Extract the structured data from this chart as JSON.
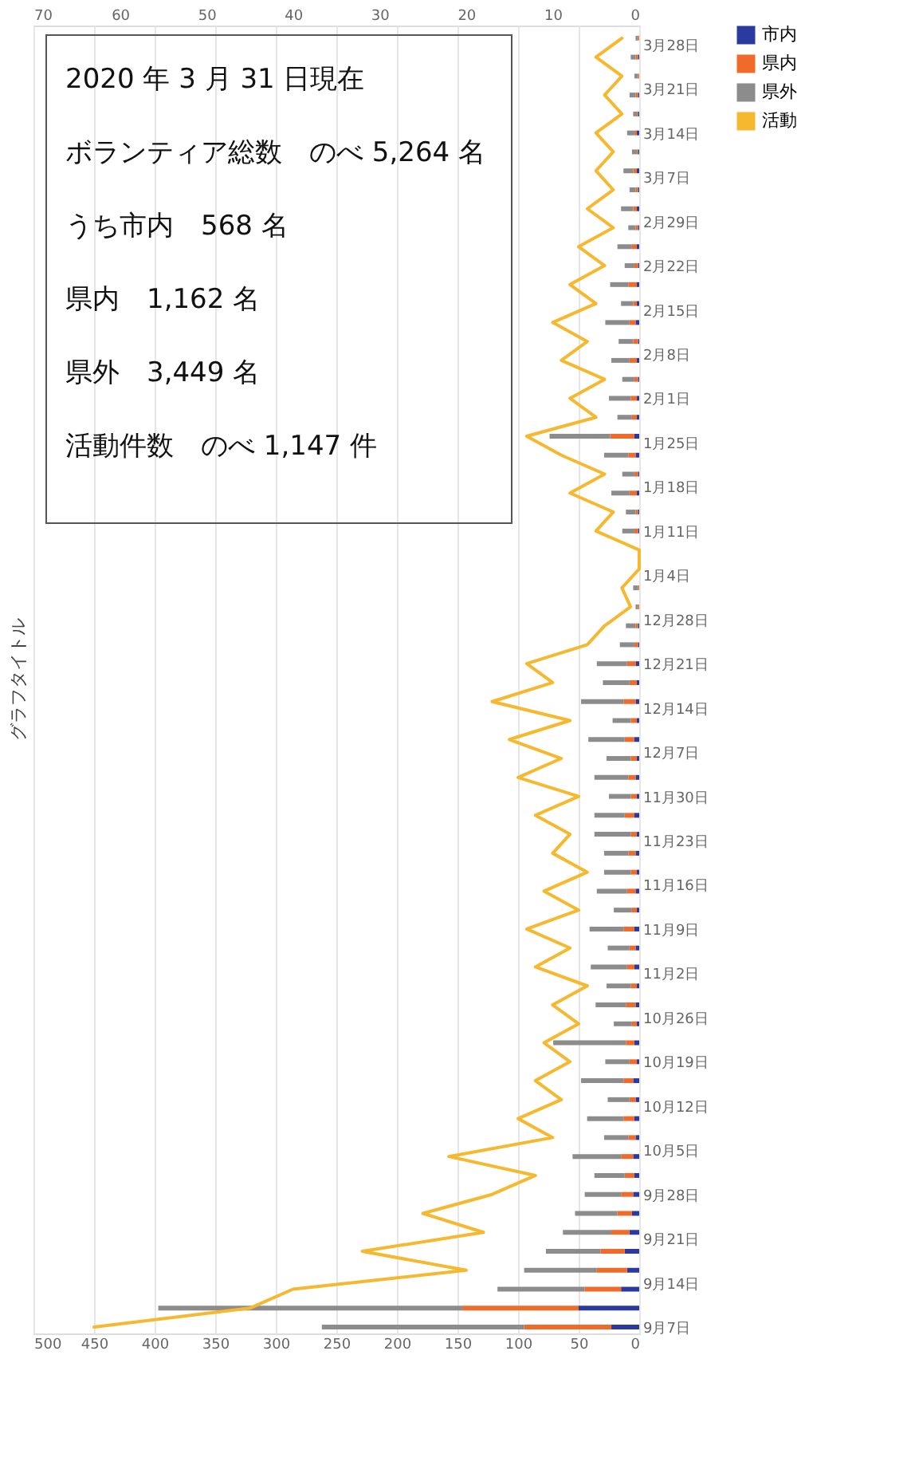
{
  "chart_data": {
    "type": "bar",
    "orientation": "horizontal",
    "stacked": true,
    "title": "グラフタイトル",
    "x": [
      "2019-09-07",
      "2019-09-10",
      "2019-09-13",
      "2019-09-16",
      "2019-09-19",
      "2019-09-22",
      "2019-09-25",
      "2019-09-28",
      "2019-10-01",
      "2019-10-04",
      "2019-10-07",
      "2019-10-10",
      "2019-10-13",
      "2019-10-16",
      "2019-10-19",
      "2019-10-22",
      "2019-10-25",
      "2019-10-28",
      "2019-10-31",
      "2019-11-03",
      "2019-11-06",
      "2019-11-09",
      "2019-11-12",
      "2019-11-15",
      "2019-11-18",
      "2019-11-21",
      "2019-11-24",
      "2019-11-27",
      "2019-11-30",
      "2019-12-03",
      "2019-12-06",
      "2019-12-09",
      "2019-12-12",
      "2019-12-15",
      "2019-12-18",
      "2019-12-21",
      "2019-12-24",
      "2019-12-27",
      "2019-12-30",
      "2020-01-02",
      "2020-01-05",
      "2020-01-08",
      "2020-01-11",
      "2020-01-14",
      "2020-01-17",
      "2020-01-20",
      "2020-01-23",
      "2020-01-26",
      "2020-01-29",
      "2020-02-01",
      "2020-02-04",
      "2020-02-07",
      "2020-02-10",
      "2020-02-13",
      "2020-02-16",
      "2020-02-19",
      "2020-02-22",
      "2020-02-25",
      "2020-02-28",
      "2020-03-02",
      "2020-03-05",
      "2020-03-08",
      "2020-03-11",
      "2020-03-14",
      "2020-03-17",
      "2020-03-20",
      "2020-03-23",
      "2020-03-26",
      "2020-03-29"
    ],
    "series": [
      {
        "name": "市内",
        "color": "#2b3a9e",
        "values": [
          23,
          50,
          15,
          10,
          12,
          8,
          6,
          5,
          4,
          5,
          3,
          4,
          3,
          5,
          2,
          4,
          2,
          3,
          2,
          4,
          3,
          4,
          2,
          3,
          2,
          3,
          2,
          4,
          2,
          3,
          2,
          4,
          2,
          3,
          2,
          3,
          1,
          1,
          0,
          0,
          0,
          0,
          1,
          1,
          2,
          1,
          3,
          4,
          2,
          2,
          1,
          2,
          1,
          3,
          2,
          2,
          1,
          2,
          1,
          2,
          1,
          2,
          1,
          2,
          1,
          1,
          0,
          1,
          0
        ]
      },
      {
        "name": "県内",
        "color": "#f06a2a",
        "values": [
          72,
          96,
          30,
          25,
          20,
          15,
          12,
          10,
          8,
          10,
          6,
          9,
          5,
          8,
          6,
          7,
          4,
          8,
          5,
          6,
          5,
          9,
          4,
          7,
          5,
          6,
          5,
          8,
          5,
          6,
          5,
          8,
          5,
          10,
          6,
          7,
          3,
          2,
          1,
          1,
          0,
          0,
          3,
          2,
          6,
          3,
          6,
          20,
          4,
          5,
          3,
          6,
          4,
          5,
          3,
          7,
          3,
          4,
          2,
          3,
          2,
          3,
          1,
          2,
          1,
          2,
          1,
          2,
          1
        ]
      },
      {
        "name": "県外",
        "color": "#8c8c8c",
        "values": [
          167,
          251,
          72,
          60,
          45,
          40,
          35,
          30,
          25,
          40,
          20,
          30,
          18,
          35,
          20,
          60,
          15,
          25,
          20,
          30,
          18,
          28,
          15,
          25,
          22,
          20,
          30,
          25,
          18,
          28,
          20,
          30,
          15,
          35,
          22,
          25,
          12,
          8,
          2,
          4,
          0,
          0,
          10,
          8,
          15,
          10,
          20,
          50,
          12,
          18,
          10,
          15,
          12,
          20,
          10,
          15,
          8,
          12,
          6,
          10,
          5,
          8,
          4,
          6,
          3,
          5,
          3,
          4,
          2
        ]
      },
      {
        "name": "活動",
        "color": "#f5b82e",
        "type": "line",
        "axis": "x2",
        "values": [
          63,
          45,
          40,
          20,
          32,
          18,
          25,
          17,
          12,
          22,
          10,
          14,
          9,
          12,
          8,
          11,
          7,
          10,
          6,
          12,
          8,
          13,
          7,
          11,
          6,
          10,
          8,
          12,
          7,
          14,
          9,
          15,
          8,
          17,
          10,
          13,
          6,
          4,
          1,
          2,
          0,
          0,
          5,
          3,
          8,
          4,
          9,
          13,
          5,
          8,
          4,
          9,
          6,
          10,
          5,
          8,
          4,
          7,
          3,
          6,
          3,
          5,
          3,
          5,
          2,
          4,
          2,
          5,
          2
        ]
      }
    ],
    "xlim": [
      500,
      0
    ],
    "xticks": [
      500,
      450,
      400,
      350,
      300,
      250,
      200,
      150,
      100,
      50,
      0
    ],
    "x2lim": [
      70,
      0
    ],
    "x2ticks": [
      70,
      60,
      50,
      40,
      30,
      20,
      10,
      0
    ],
    "ylim": [
      "2019-09-06",
      "2020-03-31"
    ],
    "yticks": [
      {
        "value": "2019-09-07",
        "label": "9月7日"
      },
      {
        "value": "2019-09-14",
        "label": "9月14日"
      },
      {
        "value": "2019-09-21",
        "label": "9月21日"
      },
      {
        "value": "2019-09-28",
        "label": "9月28日"
      },
      {
        "value": "2019-10-05",
        "label": "10月5日"
      },
      {
        "value": "2019-10-12",
        "label": "10月12日"
      },
      {
        "value": "2019-10-19",
        "label": "10月19日"
      },
      {
        "value": "2019-10-26",
        "label": "10月26日"
      },
      {
        "value": "2019-11-02",
        "label": "11月2日"
      },
      {
        "value": "2019-11-09",
        "label": "11月9日"
      },
      {
        "value": "2019-11-16",
        "label": "11月16日"
      },
      {
        "value": "2019-11-23",
        "label": "11月23日"
      },
      {
        "value": "2019-11-30",
        "label": "11月30日"
      },
      {
        "value": "2019-12-07",
        "label": "12月7日"
      },
      {
        "value": "2019-12-14",
        "label": "12月14日"
      },
      {
        "value": "2019-12-21",
        "label": "12月21日"
      },
      {
        "value": "2019-12-28",
        "label": "12月28日"
      },
      {
        "value": "2020-01-04",
        "label": "1月4日"
      },
      {
        "value": "2020-01-11",
        "label": "1月11日"
      },
      {
        "value": "2020-01-18",
        "label": "1月18日"
      },
      {
        "value": "2020-01-25",
        "label": "1月25日"
      },
      {
        "value": "2020-02-01",
        "label": "2月1日"
      },
      {
        "value": "2020-02-08",
        "label": "2月8日"
      },
      {
        "value": "2020-02-15",
        "label": "2月15日"
      },
      {
        "value": "2020-02-22",
        "label": "2月22日"
      },
      {
        "value": "2020-02-29",
        "label": "2月29日"
      },
      {
        "value": "2020-03-07",
        "label": "3月7日"
      },
      {
        "value": "2020-03-14",
        "label": "3月14日"
      },
      {
        "value": "2020-03-21",
        "label": "3月21日"
      },
      {
        "value": "2020-03-28",
        "label": "3月28日"
      }
    ],
    "grid": "x",
    "legend": "right",
    "marker": "none",
    "line_style": "solid",
    "annotations": [
      "2020 年 3 月 31 日現在",
      "ボランティア総数　のべ 5,264 名",
      "うち市内　568 名",
      "県内　1,162 名",
      "県外　3,449 名",
      "活動件数　のべ 1,147 件"
    ]
  }
}
